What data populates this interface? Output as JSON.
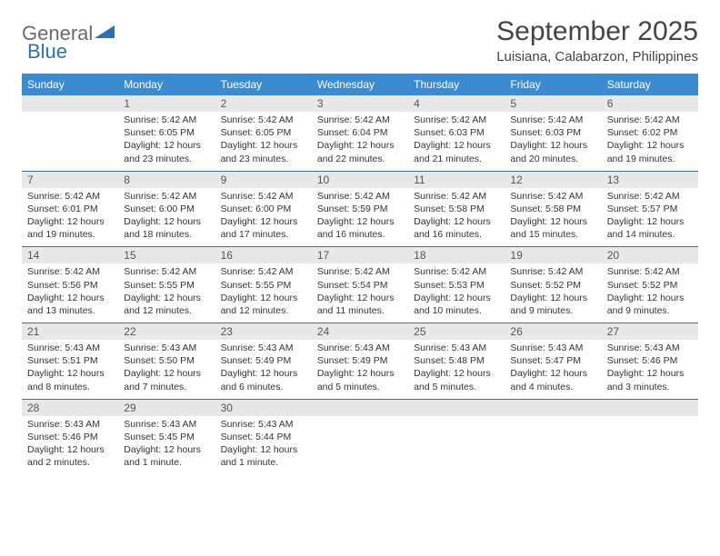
{
  "logo": {
    "text1": "General",
    "text2": "Blue"
  },
  "title": "September 2025",
  "subtitle": "Luisiana, Calabarzon, Philippines",
  "colors": {
    "header_bg": "#3b8bd0",
    "header_text": "#ffffff",
    "daynum_bg": "#e8e8e8",
    "week_border": "#3b6fa0",
    "logo_gray": "#6b6b6b",
    "logo_blue": "#2d6fb5"
  },
  "weekdays": [
    "Sunday",
    "Monday",
    "Tuesday",
    "Wednesday",
    "Thursday",
    "Friday",
    "Saturday"
  ],
  "weeks": [
    {
      "nums": [
        "",
        "1",
        "2",
        "3",
        "4",
        "5",
        "6"
      ],
      "cells": [
        null,
        {
          "sr": "Sunrise: 5:42 AM",
          "ss": "Sunset: 6:05 PM",
          "d1": "Daylight: 12 hours",
          "d2": "and 23 minutes."
        },
        {
          "sr": "Sunrise: 5:42 AM",
          "ss": "Sunset: 6:05 PM",
          "d1": "Daylight: 12 hours",
          "d2": "and 23 minutes."
        },
        {
          "sr": "Sunrise: 5:42 AM",
          "ss": "Sunset: 6:04 PM",
          "d1": "Daylight: 12 hours",
          "d2": "and 22 minutes."
        },
        {
          "sr": "Sunrise: 5:42 AM",
          "ss": "Sunset: 6:03 PM",
          "d1": "Daylight: 12 hours",
          "d2": "and 21 minutes."
        },
        {
          "sr": "Sunrise: 5:42 AM",
          "ss": "Sunset: 6:03 PM",
          "d1": "Daylight: 12 hours",
          "d2": "and 20 minutes."
        },
        {
          "sr": "Sunrise: 5:42 AM",
          "ss": "Sunset: 6:02 PM",
          "d1": "Daylight: 12 hours",
          "d2": "and 19 minutes."
        }
      ]
    },
    {
      "nums": [
        "7",
        "8",
        "9",
        "10",
        "11",
        "12",
        "13"
      ],
      "cells": [
        {
          "sr": "Sunrise: 5:42 AM",
          "ss": "Sunset: 6:01 PM",
          "d1": "Daylight: 12 hours",
          "d2": "and 19 minutes."
        },
        {
          "sr": "Sunrise: 5:42 AM",
          "ss": "Sunset: 6:00 PM",
          "d1": "Daylight: 12 hours",
          "d2": "and 18 minutes."
        },
        {
          "sr": "Sunrise: 5:42 AM",
          "ss": "Sunset: 6:00 PM",
          "d1": "Daylight: 12 hours",
          "d2": "and 17 minutes."
        },
        {
          "sr": "Sunrise: 5:42 AM",
          "ss": "Sunset: 5:59 PM",
          "d1": "Daylight: 12 hours",
          "d2": "and 16 minutes."
        },
        {
          "sr": "Sunrise: 5:42 AM",
          "ss": "Sunset: 5:58 PM",
          "d1": "Daylight: 12 hours",
          "d2": "and 16 minutes."
        },
        {
          "sr": "Sunrise: 5:42 AM",
          "ss": "Sunset: 5:58 PM",
          "d1": "Daylight: 12 hours",
          "d2": "and 15 minutes."
        },
        {
          "sr": "Sunrise: 5:42 AM",
          "ss": "Sunset: 5:57 PM",
          "d1": "Daylight: 12 hours",
          "d2": "and 14 minutes."
        }
      ]
    },
    {
      "nums": [
        "14",
        "15",
        "16",
        "17",
        "18",
        "19",
        "20"
      ],
      "cells": [
        {
          "sr": "Sunrise: 5:42 AM",
          "ss": "Sunset: 5:56 PM",
          "d1": "Daylight: 12 hours",
          "d2": "and 13 minutes."
        },
        {
          "sr": "Sunrise: 5:42 AM",
          "ss": "Sunset: 5:55 PM",
          "d1": "Daylight: 12 hours",
          "d2": "and 12 minutes."
        },
        {
          "sr": "Sunrise: 5:42 AM",
          "ss": "Sunset: 5:55 PM",
          "d1": "Daylight: 12 hours",
          "d2": "and 12 minutes."
        },
        {
          "sr": "Sunrise: 5:42 AM",
          "ss": "Sunset: 5:54 PM",
          "d1": "Daylight: 12 hours",
          "d2": "and 11 minutes."
        },
        {
          "sr": "Sunrise: 5:42 AM",
          "ss": "Sunset: 5:53 PM",
          "d1": "Daylight: 12 hours",
          "d2": "and 10 minutes."
        },
        {
          "sr": "Sunrise: 5:42 AM",
          "ss": "Sunset: 5:52 PM",
          "d1": "Daylight: 12 hours",
          "d2": "and 9 minutes."
        },
        {
          "sr": "Sunrise: 5:42 AM",
          "ss": "Sunset: 5:52 PM",
          "d1": "Daylight: 12 hours",
          "d2": "and 9 minutes."
        }
      ]
    },
    {
      "nums": [
        "21",
        "22",
        "23",
        "24",
        "25",
        "26",
        "27"
      ],
      "cells": [
        {
          "sr": "Sunrise: 5:43 AM",
          "ss": "Sunset: 5:51 PM",
          "d1": "Daylight: 12 hours",
          "d2": "and 8 minutes."
        },
        {
          "sr": "Sunrise: 5:43 AM",
          "ss": "Sunset: 5:50 PM",
          "d1": "Daylight: 12 hours",
          "d2": "and 7 minutes."
        },
        {
          "sr": "Sunrise: 5:43 AM",
          "ss": "Sunset: 5:49 PM",
          "d1": "Daylight: 12 hours",
          "d2": "and 6 minutes."
        },
        {
          "sr": "Sunrise: 5:43 AM",
          "ss": "Sunset: 5:49 PM",
          "d1": "Daylight: 12 hours",
          "d2": "and 5 minutes."
        },
        {
          "sr": "Sunrise: 5:43 AM",
          "ss": "Sunset: 5:48 PM",
          "d1": "Daylight: 12 hours",
          "d2": "and 5 minutes."
        },
        {
          "sr": "Sunrise: 5:43 AM",
          "ss": "Sunset: 5:47 PM",
          "d1": "Daylight: 12 hours",
          "d2": "and 4 minutes."
        },
        {
          "sr": "Sunrise: 5:43 AM",
          "ss": "Sunset: 5:46 PM",
          "d1": "Daylight: 12 hours",
          "d2": "and 3 minutes."
        }
      ]
    },
    {
      "nums": [
        "28",
        "29",
        "30",
        "",
        "",
        "",
        ""
      ],
      "cells": [
        {
          "sr": "Sunrise: 5:43 AM",
          "ss": "Sunset: 5:46 PM",
          "d1": "Daylight: 12 hours",
          "d2": "and 2 minutes."
        },
        {
          "sr": "Sunrise: 5:43 AM",
          "ss": "Sunset: 5:45 PM",
          "d1": "Daylight: 12 hours",
          "d2": "and 1 minute."
        },
        {
          "sr": "Sunrise: 5:43 AM",
          "ss": "Sunset: 5:44 PM",
          "d1": "Daylight: 12 hours",
          "d2": "and 1 minute."
        },
        null,
        null,
        null,
        null
      ]
    }
  ]
}
